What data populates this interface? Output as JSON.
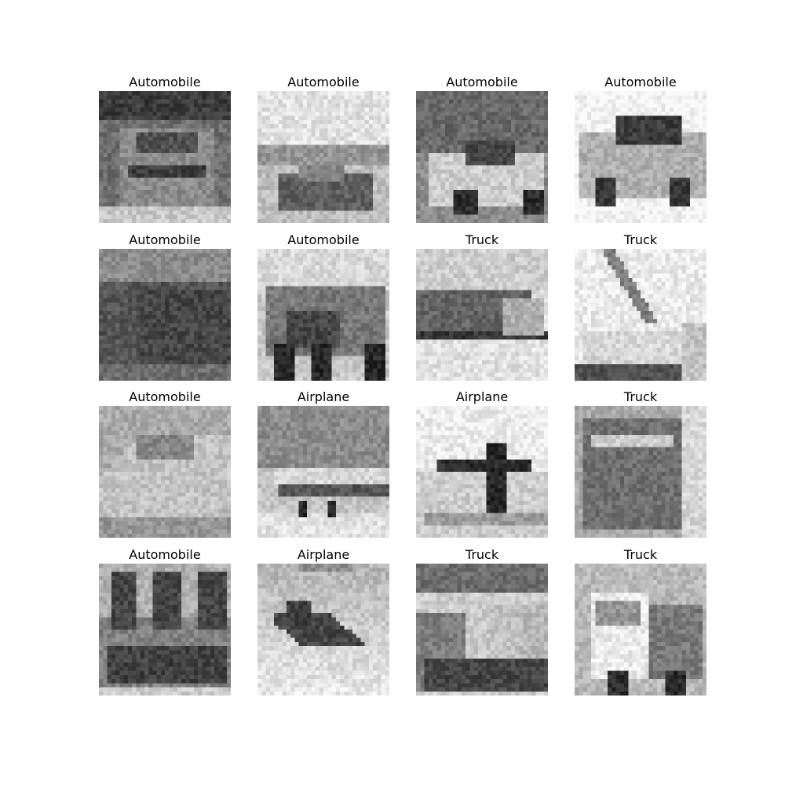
{
  "figure": {
    "images": [
      {
        "label": "Automobile",
        "subject": "automobile-front"
      },
      {
        "label": "Automobile",
        "subject": "automobile-road"
      },
      {
        "label": "Automobile",
        "subject": "automobile-convertible"
      },
      {
        "label": "Automobile",
        "subject": "automobile-hatchback"
      },
      {
        "label": "Automobile",
        "subject": "automobile-dark"
      },
      {
        "label": "Automobile",
        "subject": "automobile-vintage"
      },
      {
        "label": "Truck",
        "subject": "truck-side"
      },
      {
        "label": "Truck",
        "subject": "truck-crane"
      },
      {
        "label": "Automobile",
        "subject": "automobile-sedan"
      },
      {
        "label": "Airplane",
        "subject": "airplane-airliner"
      },
      {
        "label": "Airplane",
        "subject": "airplane-propeller"
      },
      {
        "label": "Truck",
        "subject": "truck-box"
      },
      {
        "label": "Automobile",
        "subject": "automobile-arches"
      },
      {
        "label": "Airplane",
        "subject": "airplane-flying"
      },
      {
        "label": "Truck",
        "subject": "truck-tanker"
      },
      {
        "label": "Truck",
        "subject": "truck-small"
      }
    ]
  }
}
